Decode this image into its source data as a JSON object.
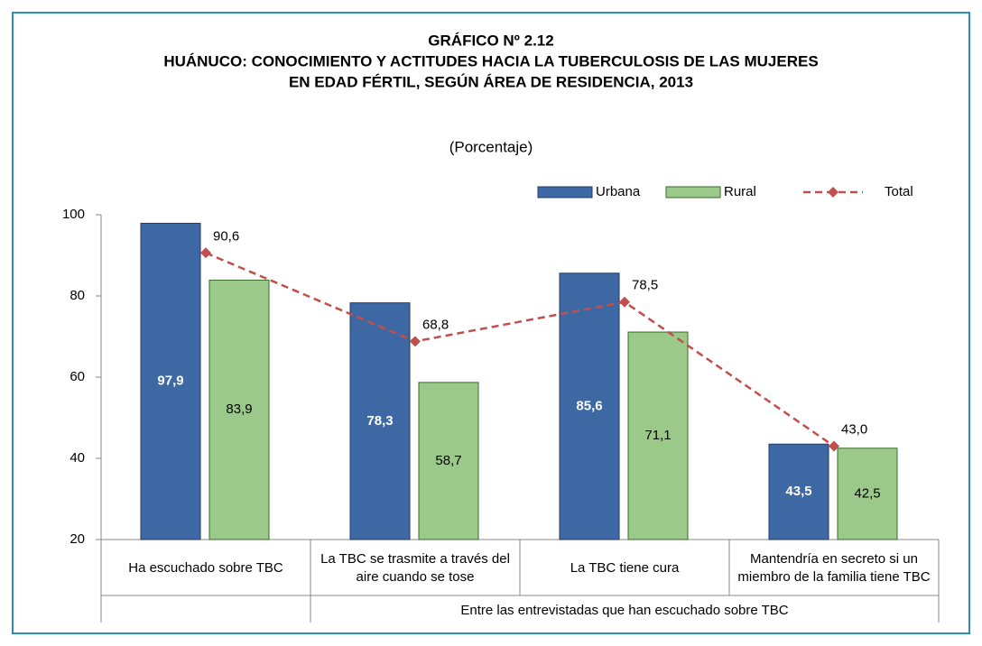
{
  "chart_data": {
    "type": "bar",
    "title": [
      "GRÁFICO Nº 2.12",
      "HUÁNUCO: CONOCIMIENTO Y ACTITUDES HACIA LA TUBERCULOSIS DE LAS MUJERES",
      "EN EDAD FÉRTIL, SEGÚN ÁREA DE RESIDENCIA, 2013"
    ],
    "subtitle": "(Porcentaje)",
    "categories": [
      "Ha escuchado sobre TBC",
      "La TBC se trasmite a través del aire cuando se tose",
      "La TBC tiene cura",
      "Mantendría en secreto si un miembro de la familia tiene TBC"
    ],
    "group_label": "Entre las entrevistadas que han escuchado sobre TBC",
    "series": [
      {
        "name": "Urbana",
        "type": "bar",
        "color": "#3e68a3",
        "values": [
          97.9,
          78.3,
          85.6,
          43.5
        ],
        "value_labels": [
          "97,9",
          "78,3",
          "85,6",
          "43,5"
        ]
      },
      {
        "name": "Rural",
        "type": "bar",
        "color": "#9bc98a",
        "values": [
          83.9,
          58.7,
          71.1,
          42.5
        ],
        "value_labels": [
          "83,9",
          "58,7",
          "71,1",
          "42,5"
        ]
      },
      {
        "name": "Total",
        "type": "line",
        "color": "#c0504d",
        "values": [
          90.6,
          68.8,
          78.5,
          43.0
        ],
        "value_labels": [
          "90,6",
          "68,8",
          "78,5",
          "43,0"
        ]
      }
    ],
    "ylim": [
      20,
      100
    ],
    "yticks": [
      20,
      40,
      60,
      80,
      100
    ],
    "legend": "top-right"
  }
}
